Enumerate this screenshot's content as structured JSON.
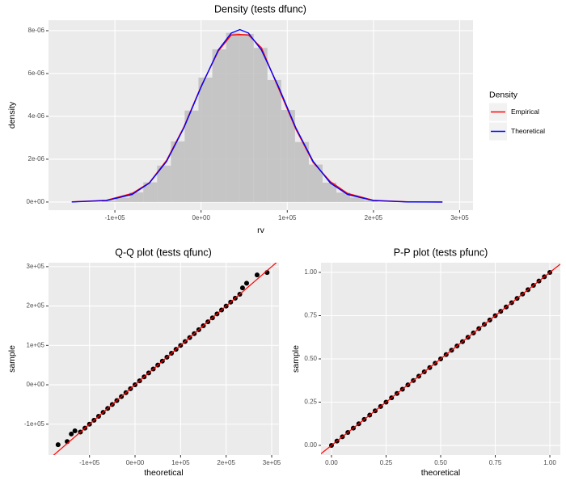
{
  "chart_data": [
    {
      "type": "histogram",
      "title": "Density (tests dfunc)",
      "x_label": "rv",
      "y_label": "density",
      "bins": [
        -115000,
        -99000,
        -83000,
        -67000,
        -51000,
        -35000,
        -19000,
        -3000,
        13000,
        29000,
        45000,
        61000,
        77000,
        93000,
        109000,
        125000,
        141000,
        157000,
        173000,
        189000,
        205000
      ],
      "values": [
        8e-08,
        2e-07,
        4.5e-07,
        9.2e-07,
        1.7e-06,
        2.83e-06,
        4.27e-06,
        5.81e-06,
        7.13e-06,
        7.9e-06,
        7.85e-06,
        7.2e-06,
        5.7e-06,
        4.3e-06,
        2.8e-06,
        1.75e-06,
        9e-07,
        4.4e-07,
        2.1e-07,
        9e-08
      ],
      "color": "#BEBEBE",
      "series": [
        {
          "name": "Empirical",
          "color": "#FF0000",
          "x": [
            -150000,
            -110000,
            -80000,
            -60000,
            -40000,
            -20000,
            0,
            20000,
            35000,
            45000,
            55000,
            70000,
            90000,
            110000,
            130000,
            150000,
            170000,
            200000,
            240000,
            280000
          ],
          "values": [
            1e-08,
            8e-08,
            4e-07,
            9e-07,
            1.95e-06,
            3.5e-06,
            5.4e-06,
            7.05e-06,
            7.8e-06,
            7.82e-06,
            7.8e-06,
            7.2e-06,
            5.3e-06,
            3.4e-06,
            1.85e-06,
            9.5e-07,
            4e-07,
            8e-08,
            1e-08,
            0
          ]
        },
        {
          "name": "Theoretical",
          "color": "#0000FF",
          "x": [
            -150000,
            -110000,
            -80000,
            -60000,
            -40000,
            -20000,
            0,
            20000,
            35000,
            45000,
            55000,
            70000,
            90000,
            110000,
            130000,
            150000,
            170000,
            200000,
            240000,
            280000
          ],
          "values": [
            4e-09,
            6.6e-08,
            3.54e-07,
            8.86e-07,
            1.9e-06,
            3.46e-06,
            5.37e-06,
            7.1e-06,
            7.89e-06,
            8.05e-06,
            7.89e-06,
            7.1e-06,
            5.37e-06,
            3.46e-06,
            1.9e-06,
            8.86e-07,
            3.54e-07,
            6.6e-08,
            4e-09,
            0
          ]
        }
      ],
      "legend": {
        "title": "Density",
        "position": "right"
      },
      "xlim": [
        -177000,
        315500
      ],
      "xticks": [
        {
          "value": -100000,
          "label": "-1e+05"
        },
        {
          "value": 0,
          "label": "0e+00"
        },
        {
          "value": 100000,
          "label": "1e+05"
        },
        {
          "value": 200000,
          "label": "2e+05"
        },
        {
          "value": 300000,
          "label": "3e+05"
        }
      ],
      "ylim": [
        -3.8e-07,
        8.49e-06
      ],
      "yticks": [
        {
          "value": 0,
          "label": "0e+00"
        },
        {
          "value": 2e-06,
          "label": "2e-06"
        },
        {
          "value": 4e-06,
          "label": "4e-06"
        },
        {
          "value": 6e-06,
          "label": "6e-06"
        },
        {
          "value": 8e-06,
          "label": "8e-06"
        }
      ],
      "grid": true
    },
    {
      "type": "scatter",
      "title": "Q-Q plot (tests qfunc)",
      "x_label": "theoretical",
      "y_label": "sample",
      "color": "#000000",
      "x": [
        -169000,
        -149000,
        -140000,
        -132000,
        -120000,
        -110000,
        -100000,
        -90000,
        -80000,
        -70000,
        -60000,
        -50000,
        -40000,
        -30000,
        -20000,
        -10000,
        0,
        10000,
        20000,
        30000,
        40000,
        50000,
        60000,
        70000,
        80000,
        90000,
        100000,
        110000,
        120000,
        130000,
        140000,
        150000,
        160000,
        170000,
        180000,
        190000,
        200000,
        210000,
        220000,
        230000,
        236000,
        245000,
        268000,
        290000
      ],
      "values": [
        -152000,
        -144000,
        -125000,
        -117000,
        -120000,
        -110000,
        -100000,
        -90000,
        -80000,
        -70000,
        -60000,
        -50000,
        -40000,
        -30000,
        -20000,
        -10000,
        0,
        10000,
        20000,
        30000,
        40000,
        50000,
        60000,
        70000,
        80000,
        90000,
        100000,
        110000,
        120000,
        130000,
        140000,
        150000,
        160000,
        170000,
        180000,
        190000,
        200000,
        210000,
        220000,
        230000,
        246000,
        258000,
        279000,
        285000
      ],
      "reference_line": {
        "color": "#FF0000",
        "slope": 1,
        "intercept": 0
      },
      "xlim": [
        -190000,
        316000
      ],
      "xticks": [
        {
          "value": -100000,
          "label": "-1e+05"
        },
        {
          "value": 0,
          "label": "0e+00"
        },
        {
          "value": 100000,
          "label": "1e+05"
        },
        {
          "value": 200000,
          "label": "2e+05"
        },
        {
          "value": 300000,
          "label": "3e+05"
        }
      ],
      "ylim": [
        -178500,
        310000
      ],
      "yticks": [
        {
          "value": -100000,
          "label": "-1e+05"
        },
        {
          "value": 0,
          "label": "0e+00"
        },
        {
          "value": 100000,
          "label": "1e+05"
        },
        {
          "value": 200000,
          "label": "2e+05"
        },
        {
          "value": 300000,
          "label": "3e+05"
        }
      ],
      "grid": true
    },
    {
      "type": "scatter",
      "title": "P-P plot (tests pfunc)",
      "x_label": "theoretical",
      "y_label": "sample",
      "color": "#000000",
      "x": [
        0,
        0.025,
        0.05,
        0.075,
        0.1,
        0.125,
        0.15,
        0.175,
        0.2,
        0.225,
        0.25,
        0.275,
        0.3,
        0.325,
        0.35,
        0.375,
        0.4,
        0.425,
        0.45,
        0.475,
        0.5,
        0.525,
        0.55,
        0.575,
        0.6,
        0.625,
        0.65,
        0.675,
        0.7,
        0.725,
        0.75,
        0.775,
        0.8,
        0.825,
        0.85,
        0.875,
        0.9,
        0.925,
        0.95,
        0.975,
        1
      ],
      "values": [
        0,
        0.025,
        0.05,
        0.075,
        0.1,
        0.125,
        0.15,
        0.175,
        0.2,
        0.225,
        0.25,
        0.275,
        0.3,
        0.325,
        0.35,
        0.375,
        0.4,
        0.425,
        0.45,
        0.475,
        0.5,
        0.525,
        0.55,
        0.575,
        0.6,
        0.625,
        0.65,
        0.675,
        0.7,
        0.725,
        0.75,
        0.775,
        0.8,
        0.825,
        0.85,
        0.875,
        0.9,
        0.925,
        0.95,
        0.975,
        1
      ],
      "reference_line": {
        "color": "#FF0000",
        "slope": 1,
        "intercept": 0
      },
      "xlim": [
        -0.048,
        1.048
      ],
      "xticks": [
        {
          "value": 0,
          "label": "0.00"
        },
        0.25,
        {
          "value": 0.5,
          "label": "0.50"
        },
        0.75,
        {
          "value": 1,
          "label": "1.00"
        }
      ],
      "ylim": [
        -0.056,
        1.056
      ],
      "yticks": [
        {
          "value": 0,
          "label": "0.00"
        },
        0.25,
        {
          "value": 0.5,
          "label": "0.50"
        },
        0.75,
        {
          "value": 1,
          "label": "1.00"
        }
      ],
      "grid": true
    }
  ]
}
